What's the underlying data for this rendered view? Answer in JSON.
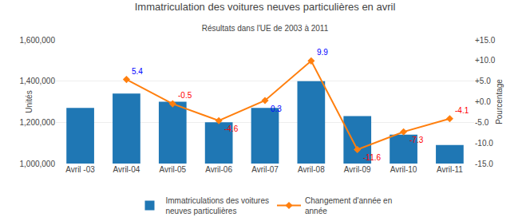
{
  "chart_data": {
    "type": "bar",
    "title": "Immatriculation des voitures neuves particulières en avril",
    "subtitle": "Résultats dans l'UE de 2003 à 2011",
    "ylabel": "Unités",
    "y2label": "Pourcentage",
    "categories": [
      "Avril -03",
      "Avril-04",
      "Avril-05",
      "Avril-06",
      "Avril-07",
      "Avril-08",
      "Avril-09",
      "Avril-10",
      "Avril-11"
    ],
    "series": [
      {
        "name": "Immatriculations des voitures\nneuves particulières",
        "type": "bar",
        "values": [
          1270000,
          1340000,
          1300000,
          1200000,
          1270000,
          1400000,
          1230000,
          1140000,
          1090000
        ]
      },
      {
        "name": "Changement d'année en\nannée",
        "type": "line",
        "axis": "y2",
        "marker": "diamond",
        "values": [
          null,
          5.4,
          -0.5,
          -4.6,
          0.3,
          9.9,
          -11.6,
          -7.3,
          -4.1
        ]
      }
    ],
    "ylim": [
      1000000,
      1600000
    ],
    "yticks": [
      {
        "value": 1000000,
        "label": "1,000,000"
      },
      {
        "value": 1200000,
        "label": "1,200,000"
      },
      {
        "value": 1400000,
        "label": "1,400,000"
      },
      {
        "value": 1600000,
        "label": "1,600,000"
      }
    ],
    "y2lim": [
      -15.0,
      15.0
    ],
    "y2ticks": [
      {
        "value": -15.0,
        "label": "-15.0"
      },
      {
        "value": -10.0,
        "label": "-10.0"
      },
      {
        "value": -5.0,
        "label": "-5.0"
      },
      {
        "value": 0.0,
        "label": "+0.0"
      },
      {
        "value": 5.0,
        "label": "+5.0"
      },
      {
        "value": 10.0,
        "label": "+10.0"
      },
      {
        "value": 15.0,
        "label": "+15.0"
      }
    ],
    "grid": true,
    "legend": "bottom",
    "annotations": [
      {
        "category": "Avril-04",
        "value": 5.4,
        "text": "5.4",
        "color": "blue"
      },
      {
        "category": "Avril-05",
        "value": -0.5,
        "text": "-0.5",
        "color": "red"
      },
      {
        "category": "Avril-06",
        "value": -4.6,
        "text": "-4.6",
        "color": "red"
      },
      {
        "category": "Avril-07",
        "value": 0.3,
        "text": "0.3",
        "color": "blue"
      },
      {
        "category": "Avril-08",
        "value": 9.9,
        "text": "9.9",
        "color": "blue"
      },
      {
        "category": "Avril-09",
        "value": -11.6,
        "text": "-11.6",
        "color": "red"
      },
      {
        "category": "Avril-10",
        "value": -7.3,
        "text": "-7.3",
        "color": "red"
      },
      {
        "category": "Avril-11",
        "value": -4.1,
        "text": "-4.1",
        "color": "red"
      }
    ]
  }
}
